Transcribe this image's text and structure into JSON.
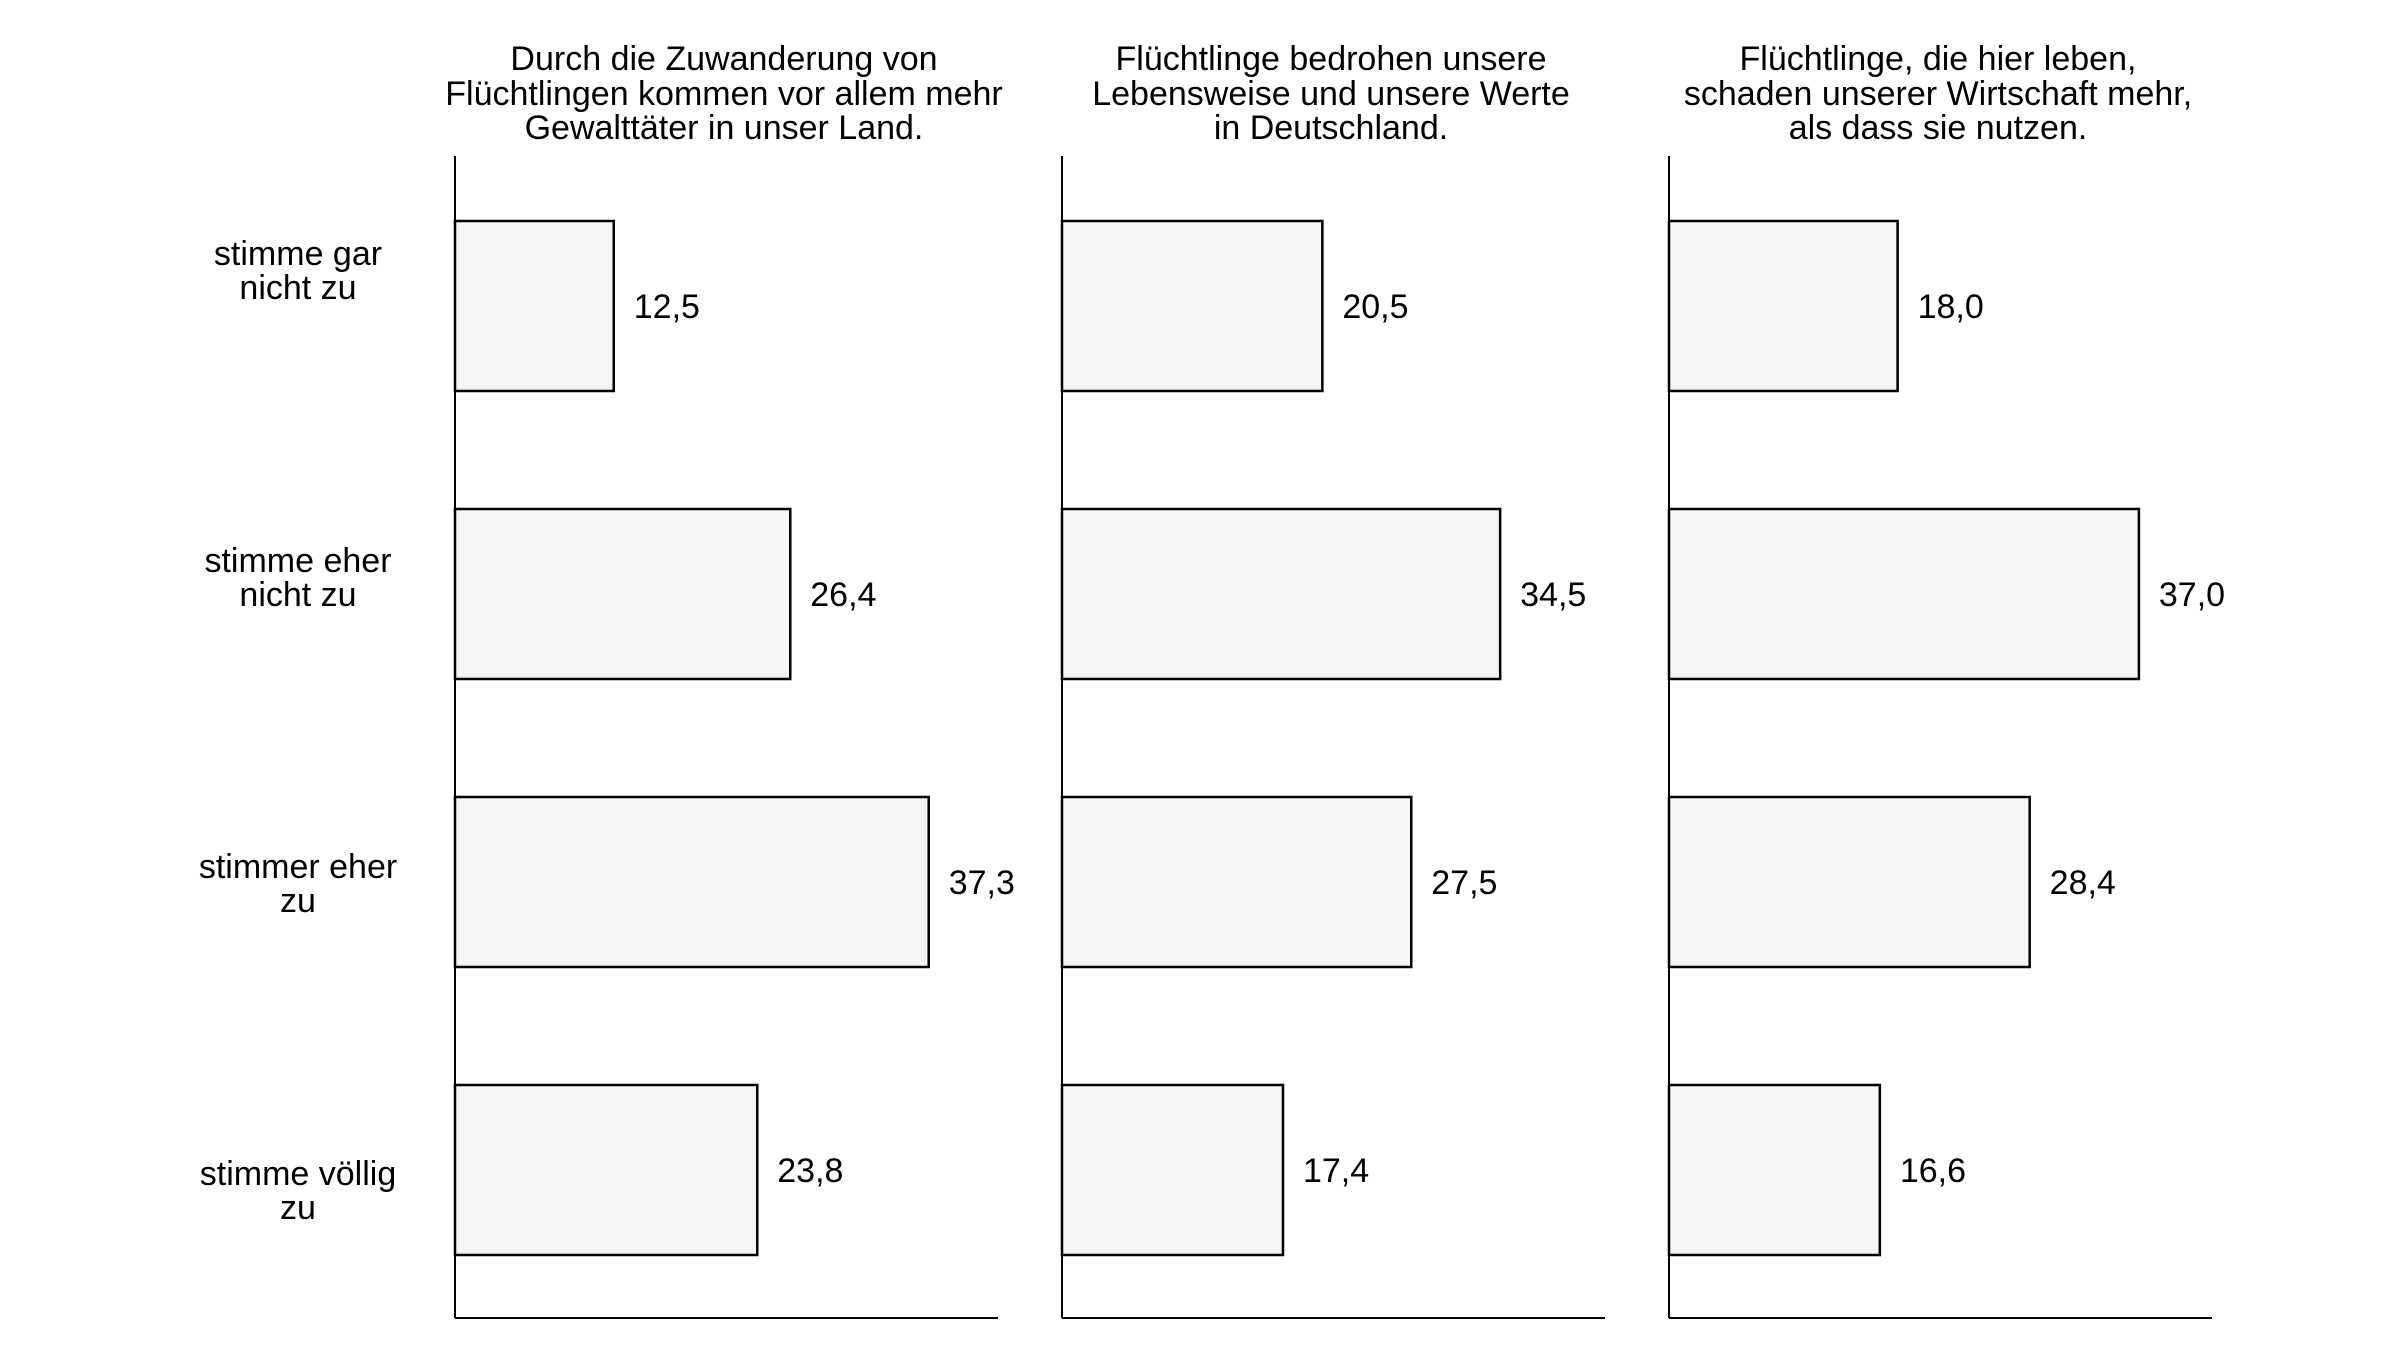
{
  "chart_data": {
    "type": "bar",
    "orientation": "horizontal",
    "categories": [
      [
        "stimme gar",
        "nicht zu"
      ],
      [
        "stimme eher",
        "nicht zu"
      ],
      [
        "stimmer eher",
        "zu"
      ],
      [
        "stimme völlig",
        "zu"
      ]
    ],
    "panels": [
      {
        "title": [
          "Durch die Zuwanderung von",
          "Flüchtlingen kommen vor allem mehr",
          "Gewalttäter in unser Land."
        ],
        "values": [
          12.5,
          26.4,
          37.3,
          23.8
        ],
        "value_labels": [
          "12,5",
          "26,4",
          "37,3",
          "23,8"
        ]
      },
      {
        "title": [
          "Flüchtlinge bedrohen unsere",
          "Lebensweise und unsere Werte",
          "in Deutschland."
        ],
        "values": [
          20.5,
          34.5,
          27.5,
          17.4
        ],
        "value_labels": [
          "20,5",
          "34,5",
          "27,5",
          "17,4"
        ]
      },
      {
        "title": [
          "Flüchtlinge, die hier leben,",
          "schaden unserer Wirtschaft mehr,",
          "als dass sie nutzen."
        ],
        "values": [
          18.0,
          37.0,
          28.4,
          16.6
        ],
        "value_labels": [
          "18,0",
          "37,0",
          "28,4",
          "16,6"
        ]
      }
    ],
    "xlim": [
      0,
      42.5
    ],
    "bar_fill": "#f5f5f5",
    "bar_stroke": "#000000",
    "grid": false,
    "legend": "none",
    "xlabel": "",
    "ylabel": ""
  }
}
